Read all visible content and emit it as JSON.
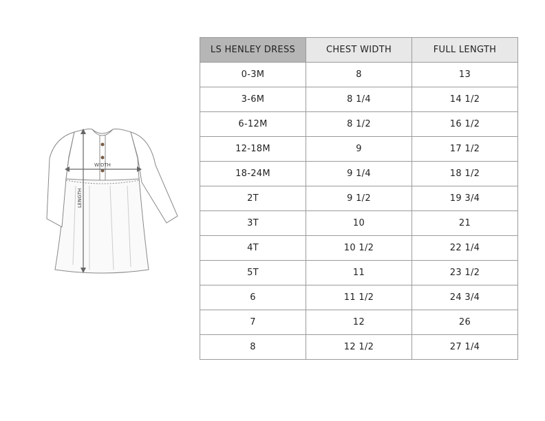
{
  "illustration": {
    "width_label": "WIDTH",
    "length_label": "LENGTH",
    "button_color": "#7a5c45"
  },
  "table": {
    "headers": [
      "LS HENLEY DRESS",
      "CHEST WIDTH",
      "FULL LENGTH"
    ],
    "rows": [
      [
        "0-3M",
        "8",
        "13"
      ],
      [
        "3-6M",
        "8 1/4",
        "14 1/2"
      ],
      [
        "6-12M",
        "8 1/2",
        "16 1/2"
      ],
      [
        "12-18M",
        "9",
        "17 1/2"
      ],
      [
        "18-24M",
        "9 1/4",
        "18 1/2"
      ],
      [
        "2T",
        "9 1/2",
        "19 3/4"
      ],
      [
        "3T",
        "10",
        "21"
      ],
      [
        "4T",
        "10 1/2",
        "22 1/4"
      ],
      [
        "5T",
        "11",
        "23 1/2"
      ],
      [
        "6",
        "11 1/2",
        "24 3/4"
      ],
      [
        "7",
        "12",
        "26"
      ],
      [
        "8",
        "12 1/2",
        "27 1/4"
      ]
    ]
  }
}
